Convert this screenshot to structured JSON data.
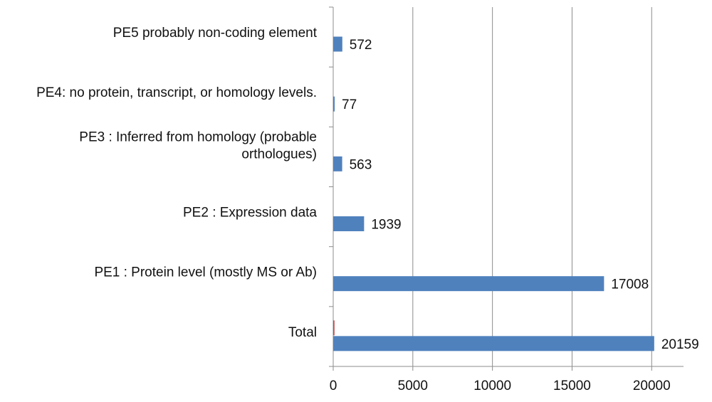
{
  "chart_data": {
    "type": "bar",
    "orientation": "horizontal",
    "title": "",
    "xlabel": "",
    "ylabel": "",
    "xlim": [
      0,
      22000
    ],
    "x_ticks": [
      0,
      5000,
      10000,
      15000,
      20000
    ],
    "grid": "vertical",
    "legend": "none",
    "bar_color": "#4F81BD",
    "secondary_color": "#C0504D",
    "categories": [
      {
        "lines": [
          "PE5 probably non-coding element"
        ]
      },
      {
        "lines": [
          "PE4: no protein, transcript, or homology levels."
        ]
      },
      {
        "lines": [
          "PE3 : Inferred from homology (probable",
          "orthologues)"
        ]
      },
      {
        "lines": [
          "PE2 : Expression data"
        ]
      },
      {
        "lines": [
          "PE1 : Protein level (mostly MS or Ab)"
        ]
      },
      {
        "lines": [
          "Total"
        ]
      }
    ],
    "series": [
      {
        "values": [
          572,
          77,
          563,
          1939,
          17008,
          20159
        ]
      },
      {
        "values": [
          0,
          0,
          0,
          0,
          0,
          80
        ]
      }
    ],
    "value_labels": [
      "572",
      "77",
      "563",
      "1939",
      "17008",
      "20159"
    ]
  }
}
